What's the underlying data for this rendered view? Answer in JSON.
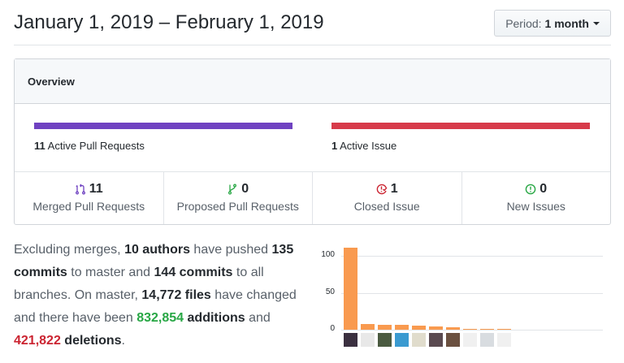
{
  "header": {
    "title": "January 1, 2019 – February 1, 2019",
    "period_label": "Period:",
    "period_value": "1 month"
  },
  "overview": {
    "title": "Overview",
    "pull_requests": {
      "count": "11",
      "label": "Active Pull Requests",
      "color": "#6f42c1"
    },
    "issues": {
      "count": "1",
      "label": "Active Issue",
      "color": "#d73a49"
    },
    "stats": [
      {
        "icon": "git-merge-icon",
        "count": "11",
        "label": "Merged Pull Requests",
        "color": "#6f42c1"
      },
      {
        "icon": "git-pull-request-icon",
        "count": "0",
        "label": "Proposed Pull Requests",
        "color": "#28a745"
      },
      {
        "icon": "issue-closed-icon",
        "count": "1",
        "label": "Closed Issue",
        "color": "#cb2431"
      },
      {
        "icon": "issue-opened-icon",
        "count": "0",
        "label": "New Issues",
        "color": "#28a745"
      }
    ]
  },
  "summary": {
    "t1": "Excluding merges, ",
    "authors": "10 authors",
    "t2": " have pushed ",
    "commits_master": "135 commits",
    "t3": " to master and ",
    "commits_all": "144 commits",
    "t4": " to all branches. On master, ",
    "files": "14,772 files",
    "t5": " have changed and there have been ",
    "additions_num": "832,854",
    "additions_word": " additions",
    "t6": " and ",
    "deletions_num": "421,822",
    "deletions_word": " deletions",
    "t7": "."
  },
  "chart_data": {
    "type": "bar",
    "title": "",
    "xlabel": "",
    "ylabel": "",
    "categories": [
      "author-1",
      "author-2",
      "author-3",
      "author-4",
      "author-5",
      "author-6",
      "author-7",
      "author-8",
      "author-9",
      "author-10"
    ],
    "values": [
      111,
      8,
      7,
      7,
      5,
      4,
      3,
      1,
      1,
      1
    ],
    "yticks": [
      0,
      50,
      100
    ],
    "ylim": [
      0,
      115
    ],
    "grid": true,
    "bar_color": "#f99a4f",
    "x_tick_labels": "author avatars"
  }
}
